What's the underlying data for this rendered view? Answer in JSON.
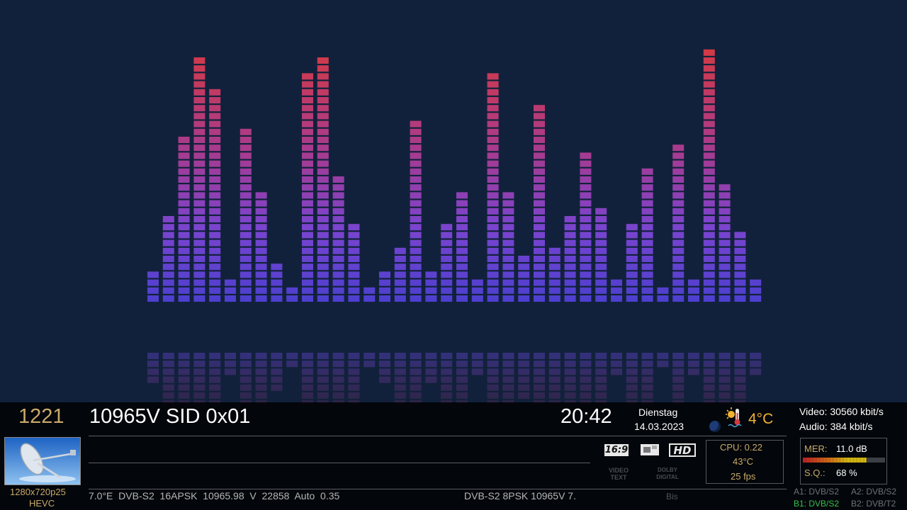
{
  "channel": {
    "number": "1221",
    "name": "10965V SID 0x01",
    "resolution": "1280x720p25",
    "codec": "HEVC"
  },
  "clock": {
    "time": "20:42",
    "weekday": "Dienstag",
    "date": "14.03.2023"
  },
  "weather": {
    "temperature": "4°C"
  },
  "bitrate": {
    "video": "Video: 30560 kbit/s",
    "audio": "Audio: 384 kbit/s"
  },
  "system": {
    "cpu": "CPU: 0.22",
    "temp": "43°C",
    "fps": "25 fps"
  },
  "signal": {
    "mer_label": "MER:",
    "mer_value": "11.0 dB",
    "sq_label": "S.Q.:",
    "sq_value": "68 %",
    "mer_level": 0.78
  },
  "badges": {
    "aspect": "16:9",
    "hd": "HD",
    "videotext": "VIDEO TEXT",
    "dolby": "DOLBY DIGITAL"
  },
  "tuner_info": "7.0°E  DVB-S2  16APSK  10965.98  V  22858  Auto  0.35",
  "next_info": "DVB-S2 8PSK 10965V 7.",
  "bis_label": "Bis",
  "tuners": {
    "a1": "A1: DVB/S2",
    "a2": "A2: DVB/S2",
    "b1": "B1: DVB/S2",
    "b2": "B2: DVB/T2"
  },
  "equalizer": {
    "levels": [
      4,
      11,
      21,
      31,
      27,
      3,
      22,
      14,
      5,
      2,
      29,
      31,
      16,
      10,
      2,
      4,
      7,
      23,
      4,
      10,
      14,
      3,
      29,
      14,
      6,
      25,
      7,
      11,
      19,
      12,
      3,
      10,
      17,
      2,
      20,
      3,
      32,
      15,
      9,
      3
    ]
  }
}
